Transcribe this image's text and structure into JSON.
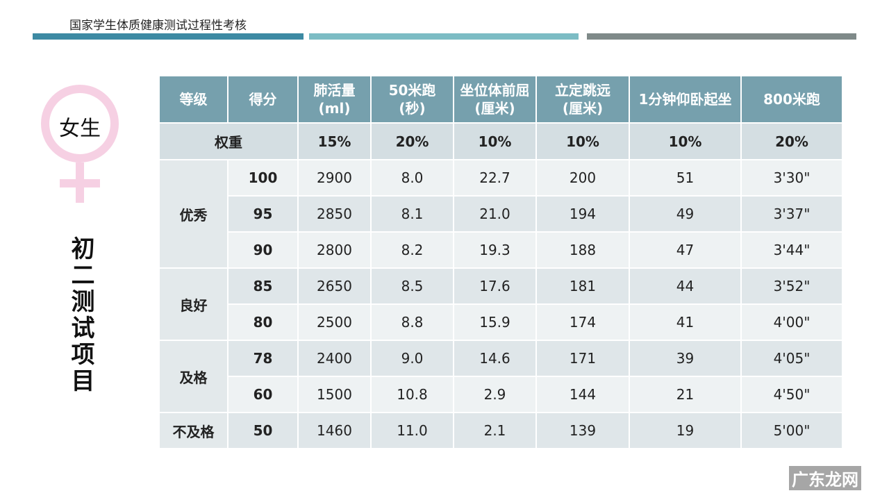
{
  "header": {
    "title": "国家学生体质健康测试过程性考核"
  },
  "badge": "女生",
  "side_title": "初二测试项目",
  "table": {
    "columns": [
      [
        "等级"
      ],
      [
        "得分"
      ],
      [
        "肺活量",
        "(ml)"
      ],
      [
        "50米跑",
        "(秒)"
      ],
      [
        "坐位体前屈",
        "(厘米)"
      ],
      [
        "立定跳远",
        "(厘米)"
      ],
      [
        "1分钟仰卧起坐"
      ],
      [
        "800米跑"
      ]
    ],
    "weight": {
      "label": "权重",
      "values": [
        "15%",
        "20%",
        "10%",
        "10%",
        "10%",
        "20%"
      ]
    },
    "groups": [
      {
        "grade": "优秀",
        "rows": [
          [
            "100",
            "2900",
            "8.0",
            "22.7",
            "200",
            "51",
            "3'30\""
          ],
          [
            "95",
            "2850",
            "8.1",
            "21.0",
            "194",
            "49",
            "3'37\""
          ],
          [
            "90",
            "2800",
            "8.2",
            "19.3",
            "188",
            "47",
            "3'44\""
          ]
        ]
      },
      {
        "grade": "良好",
        "rows": [
          [
            "85",
            "2650",
            "8.5",
            "17.6",
            "181",
            "44",
            "3'52\""
          ],
          [
            "80",
            "2500",
            "8.8",
            "15.9",
            "174",
            "41",
            "4'00\""
          ]
        ]
      },
      {
        "grade": "及格",
        "rows": [
          [
            "78",
            "2400",
            "9.0",
            "14.6",
            "171",
            "39",
            "4'05\""
          ],
          [
            "60",
            "1500",
            "10.8",
            "2.9",
            "144",
            "21",
            "4'50\""
          ]
        ]
      },
      {
        "grade": "不及格",
        "rows": [
          [
            "50",
            "1460",
            "11.0",
            "2.1",
            "139",
            "19",
            "5'00\""
          ]
        ]
      }
    ]
  },
  "watermark": "广东龙网"
}
